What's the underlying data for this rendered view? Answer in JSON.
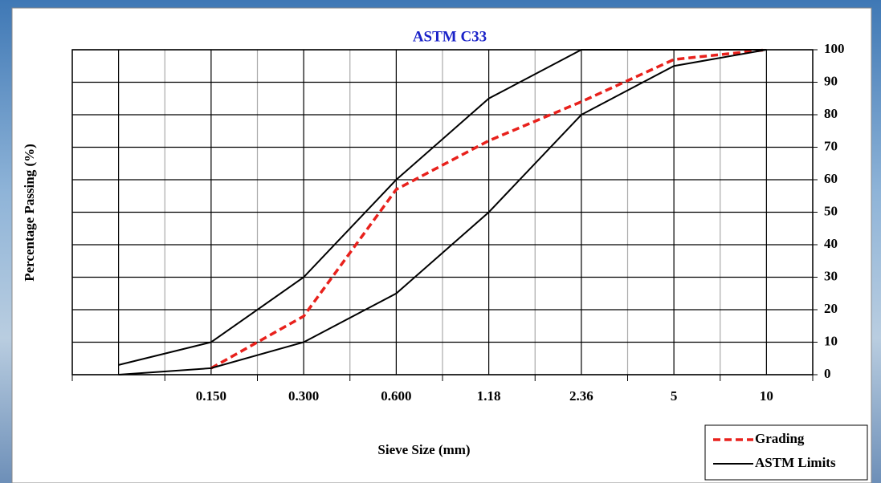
{
  "chart_data": {
    "type": "line",
    "title": "ASTM  C33",
    "x_label": "Sieve Size (mm)",
    "y_label": "Percentage Passing (%)",
    "categories": [
      null,
      "0.150",
      "0.300",
      "0.600",
      "1.18",
      "2.36",
      "5",
      "10"
    ],
    "series": [
      {
        "name": "Grading",
        "color": "#e8211c",
        "dashed": true,
        "values": [
          null,
          2,
          18,
          57,
          72,
          84,
          97,
          100
        ]
      },
      {
        "name": "ASTM Limits",
        "color": "#000000",
        "dashed": false,
        "upper": [
          3,
          10,
          30,
          60,
          85,
          100,
          100,
          100
        ],
        "lower": [
          0,
          2,
          10,
          25,
          50,
          80,
          95,
          100
        ]
      }
    ],
    "ylim": [
      0,
      100
    ],
    "yticks": [
      0,
      10,
      20,
      30,
      40,
      50,
      60,
      70,
      80,
      90,
      100
    ],
    "y_axis_side": "right",
    "grid": true,
    "legend_position": "lower right"
  }
}
